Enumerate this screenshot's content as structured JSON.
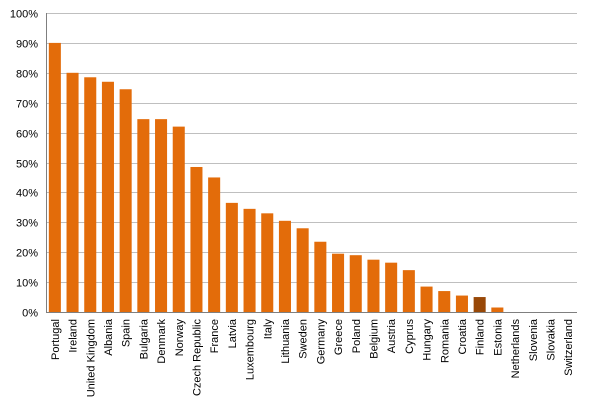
{
  "chart_data": {
    "type": "bar",
    "categories": [
      "Portugal",
      "Ireland",
      "United Kingdom",
      "Albania",
      "Spain",
      "Bulgaria",
      "Denmark",
      "Norway",
      "Czech Republic",
      "France",
      "Latvia",
      "Luxembourg",
      "Italy",
      "Lithuania",
      "Sweden",
      "Germany",
      "Greece",
      "Poland",
      "Belgium",
      "Austria",
      "Cyprus",
      "Hungary",
      "Romania",
      "Croatia",
      "Finland",
      "Estonia",
      "Netherlands",
      "Slovenia",
      "Slovakia",
      "Switzerland"
    ],
    "values": [
      90,
      80,
      78.5,
      77,
      74.5,
      64.5,
      64.5,
      62,
      48.5,
      45,
      36.5,
      34.5,
      33,
      30.5,
      28,
      23.5,
      19.5,
      19,
      17.5,
      16.5,
      14,
      8.5,
      7,
      5.5,
      5,
      1.5,
      0,
      0,
      0,
      0
    ],
    "ylim": [
      0,
      100
    ],
    "yticks": [
      "0%",
      "10%",
      "20%",
      "30%",
      "40%",
      "50%",
      "60%",
      "70%",
      "80%",
      "90%",
      "100%"
    ],
    "title": "",
    "xlabel": "",
    "ylabel": "",
    "grid": true,
    "colors": {
      "bar": "#E36C0A",
      "highlight": "#984807",
      "highlight_category": "Finland"
    }
  }
}
